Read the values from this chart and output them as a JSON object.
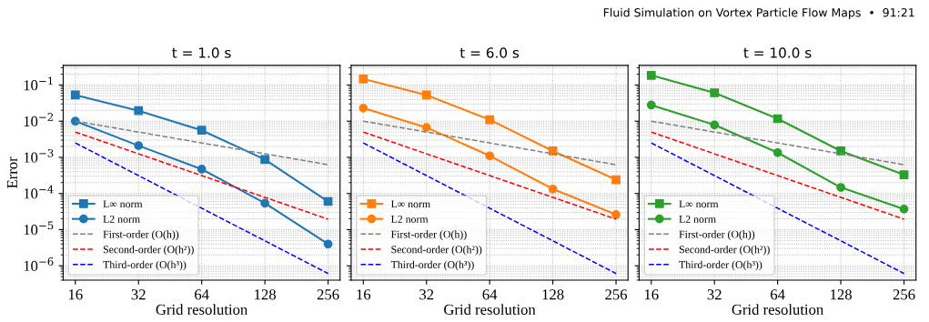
{
  "chart_data": [
    {
      "type": "line",
      "title": "t = 1.0 s",
      "xlabel": "Grid resolution",
      "ylabel": "Error",
      "log": "xy",
      "grid": true,
      "legend": "bottom left",
      "annotations": [
        "Fluid Simulation on Vortex Particle Flow Maps  •  91:21"
      ],
      "x": [
        16,
        32,
        64,
        128,
        256
      ],
      "xlim": [
        14,
        292
      ],
      "xticks": [
        16,
        32,
        64,
        128,
        256
      ],
      "ylim": [
        4e-07,
        0.35
      ],
      "yticks": [
        {
          "value": 1e-06,
          "label": "10$^{−6}$"
        },
        {
          "value": 1e-05,
          "label": "10$^{−5}$"
        },
        {
          "value": 0.0001,
          "label": "10$^{−4}$"
        },
        {
          "value": 0.001,
          "label": "10$^{−3}$"
        },
        {
          "value": 0.01,
          "label": "10$^{−2}$"
        },
        {
          "value": 0.1,
          "label": "10$^{−1}$"
        }
      ],
      "series": [
        {
          "name": "L∞ norm",
          "color": "#1f77b4",
          "marker": "square",
          "line_style": "solid",
          "values": [
            0.053,
            0.0195,
            0.0056,
            0.00087,
            6e-05
          ]
        },
        {
          "name": "L2 norm",
          "color": "#1f77b4",
          "marker": "circle",
          "line_style": "solid",
          "values": [
            0.01,
            0.0021,
            0.00047,
            5.4e-05,
            4e-06
          ]
        },
        {
          "name": "First-order (O(h))",
          "color": "#808080",
          "marker": "none",
          "line_style": "dashed",
          "values": [
            0.01,
            0.005,
            0.0025,
            0.00125,
            0.000625
          ]
        },
        {
          "name": "Second-order (O(h²))",
          "color": "#ff0000",
          "marker": "none",
          "line_style": "dashed",
          "values": [
            0.005,
            0.00125,
            0.0003125,
            7.8e-05,
            1.95e-05
          ]
        },
        {
          "name": "Third-order (O(h³))",
          "color": "#0000ff",
          "marker": "none",
          "line_style": "dashed",
          "values": [
            0.0025,
            0.0003125,
            3.9e-05,
            4.9e-06,
            6.1e-07
          ]
        }
      ]
    },
    {
      "type": "line",
      "title": "t = 6.0 s",
      "xlabel": "Grid resolution",
      "log": "xy",
      "grid": true,
      "legend": "bottom left",
      "tick_labels": "x",
      "x": [
        16,
        32,
        64,
        128,
        256
      ],
      "xlim": [
        14,
        292
      ],
      "xticks": [
        16,
        32,
        64,
        128,
        256
      ],
      "ylim": [
        4e-07,
        0.35
      ],
      "series": [
        {
          "name": "L∞ norm",
          "color": "#ff7f0e",
          "marker": "square",
          "line_style": "solid",
          "values": [
            0.147,
            0.053,
            0.011,
            0.0015,
            0.00024
          ]
        },
        {
          "name": "L2 norm",
          "color": "#ff7f0e",
          "marker": "circle",
          "line_style": "solid",
          "values": [
            0.023,
            0.0067,
            0.0011,
            0.000133,
            2.6e-05
          ]
        },
        {
          "name": "First-order (O(h))",
          "color": "#808080",
          "marker": "none",
          "line_style": "dashed",
          "values": [
            0.01,
            0.005,
            0.0025,
            0.00125,
            0.000625
          ]
        },
        {
          "name": "Second-order (O(h²))",
          "color": "#ff0000",
          "marker": "none",
          "line_style": "dashed",
          "values": [
            0.005,
            0.00125,
            0.0003125,
            7.8e-05,
            1.95e-05
          ]
        },
        {
          "name": "Third-order (O(h³))",
          "color": "#0000ff",
          "marker": "none",
          "line_style": "dashed",
          "values": [
            0.0025,
            0.0003125,
            3.9e-05,
            4.9e-06,
            6.1e-07
          ]
        }
      ]
    },
    {
      "type": "line",
      "title": "t = 10.0 s",
      "xlabel": "Grid resolution",
      "log": "xy",
      "grid": true,
      "legend": "bottom left",
      "tick_labels": "x",
      "x": [
        16,
        32,
        64,
        128,
        256
      ],
      "xlim": [
        14,
        292
      ],
      "xticks": [
        16,
        32,
        64,
        128,
        256
      ],
      "ylim": [
        4e-07,
        0.35
      ],
      "series": [
        {
          "name": "L∞ norm",
          "color": "#2ca02c",
          "marker": "square",
          "line_style": "solid",
          "values": [
            0.185,
            0.061,
            0.0117,
            0.0015,
            0.00033
          ]
        },
        {
          "name": "L2 norm",
          "color": "#2ca02c",
          "marker": "circle",
          "line_style": "solid",
          "values": [
            0.028,
            0.0079,
            0.00135,
            0.000147,
            3.7e-05
          ]
        },
        {
          "name": "First-order (O(h))",
          "color": "#808080",
          "marker": "none",
          "line_style": "dashed",
          "values": [
            0.01,
            0.005,
            0.0025,
            0.00125,
            0.000625
          ]
        },
        {
          "name": "Second-order (O(h²))",
          "color": "#ff0000",
          "marker": "none",
          "line_style": "dashed",
          "values": [
            0.005,
            0.00125,
            0.0003125,
            7.8e-05,
            1.95e-05
          ]
        },
        {
          "name": "Third-order (O(h³))",
          "color": "#0000ff",
          "marker": "none",
          "line_style": "dashed",
          "values": [
            0.0025,
            0.0003125,
            3.9e-05,
            4.9e-06,
            6.1e-07
          ]
        }
      ]
    }
  ]
}
